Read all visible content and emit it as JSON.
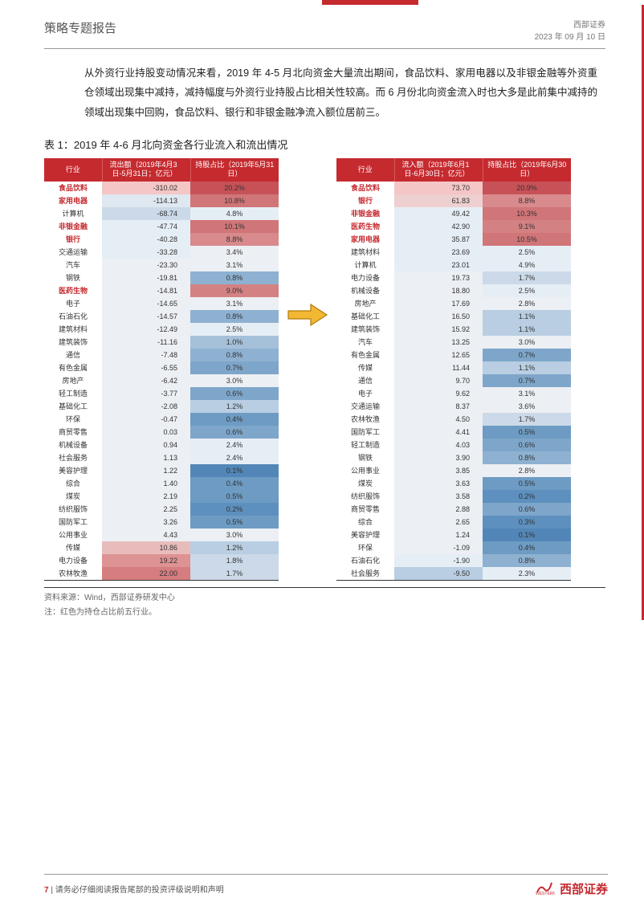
{
  "header": {
    "report_type": "策略专题报告",
    "firm": "西部证券",
    "date": "2023 年 09 月 10 日"
  },
  "intro": "从外资行业持股变动情况来看，2019 年 4-5 月北向资金大量流出期间，食品饮料、家用电器以及非银金融等外资重仓领域出现集中减持，减持幅度与外资行业持股占比相关性较高。而 6 月份北向资金流入时也大多是此前集中减持的领域出现集中回购，食品饮料、银行和非银金融净流入额位居前三。",
  "table_caption": "表 1：2019 年 4-6 月北向资金各行业流入和流出情况",
  "left_table": {
    "headers": [
      "行业",
      "流出额（2019年4月3日-5月31日；亿元）",
      "持股占比（2019年5月31日）"
    ],
    "rows": [
      {
        "ind": "食品饮料",
        "v": "-310.02",
        "p": "20.2%",
        "hl": true,
        "vc": "#f4c6c6",
        "pc": "#c65258"
      },
      {
        "ind": "家用电器",
        "v": "-114.13",
        "p": "10.8%",
        "hl": true,
        "vc": "#dfe7f0",
        "pc": "#d07578"
      },
      {
        "ind": "计算机",
        "v": "-68.74",
        "p": "4.8%",
        "hl": false,
        "vc": "#cbd9e8",
        "pc": "#e6eef5"
      },
      {
        "ind": "非银金融",
        "v": "-47.74",
        "p": "10.1%",
        "hl": true,
        "vc": "#e6eef5",
        "pc": "#d07578"
      },
      {
        "ind": "银行",
        "v": "-40.28",
        "p": "8.8%",
        "hl": true,
        "vc": "#e6eef5",
        "pc": "#d88a8c"
      },
      {
        "ind": "交通运输",
        "v": "-33.28",
        "p": "3.4%",
        "hl": false,
        "vc": "#e6eef5",
        "pc": "#eceff3"
      },
      {
        "ind": "汽车",
        "v": "-23.30",
        "p": "3.1%",
        "hl": false,
        "vc": "#eceff3",
        "pc": "#eceff3"
      },
      {
        "ind": "钢铁",
        "v": "-19.81",
        "p": "0.8%",
        "hl": false,
        "vc": "#eceff3",
        "pc": "#8eb1d1"
      },
      {
        "ind": "医药生物",
        "v": "-14.81",
        "p": "9.0%",
        "hl": true,
        "vc": "#eceff3",
        "pc": "#d48184"
      },
      {
        "ind": "电子",
        "v": "-14.65",
        "p": "3.1%",
        "hl": false,
        "vc": "#eceff3",
        "pc": "#eceff3"
      },
      {
        "ind": "石油石化",
        "v": "-14.57",
        "p": "0.8%",
        "hl": false,
        "vc": "#eceff3",
        "pc": "#8eb1d1"
      },
      {
        "ind": "建筑材料",
        "v": "-12.49",
        "p": "2.5%",
        "hl": false,
        "vc": "#eceff3",
        "pc": "#e6eef5"
      },
      {
        "ind": "建筑装饰",
        "v": "-11.16",
        "p": "1.0%",
        "hl": false,
        "vc": "#eceff3",
        "pc": "#a5c0d9"
      },
      {
        "ind": "通信",
        "v": "-7.48",
        "p": "0.8%",
        "hl": false,
        "vc": "#eceff3",
        "pc": "#8eb1d1"
      },
      {
        "ind": "有色金属",
        "v": "-6.55",
        "p": "0.7%",
        "hl": false,
        "vc": "#eceff3",
        "pc": "#7ea6ca"
      },
      {
        "ind": "房地产",
        "v": "-6.42",
        "p": "3.0%",
        "hl": false,
        "vc": "#eceff3",
        "pc": "#eceff3"
      },
      {
        "ind": "轻工制造",
        "v": "-3.77",
        "p": "0.6%",
        "hl": false,
        "vc": "#eceff3",
        "pc": "#7ea6ca"
      },
      {
        "ind": "基础化工",
        "v": "-2.08",
        "p": "1.2%",
        "hl": false,
        "vc": "#eceff3",
        "pc": "#b9cee2"
      },
      {
        "ind": "环保",
        "v": "-0.47",
        "p": "0.4%",
        "hl": false,
        "vc": "#eceff3",
        "pc": "#6d9bc3"
      },
      {
        "ind": "商贸零售",
        "v": "0.03",
        "p": "0.6%",
        "hl": false,
        "vc": "#eceff3",
        "pc": "#7ea6ca"
      },
      {
        "ind": "机械设备",
        "v": "0.94",
        "p": "2.4%",
        "hl": false,
        "vc": "#eceff3",
        "pc": "#e6eef5"
      },
      {
        "ind": "社会服务",
        "v": "1.13",
        "p": "2.4%",
        "hl": false,
        "vc": "#eceff3",
        "pc": "#e6eef5"
      },
      {
        "ind": "美容护理",
        "v": "1.22",
        "p": "0.1%",
        "hl": false,
        "vc": "#eceff3",
        "pc": "#5286b8"
      },
      {
        "ind": "综合",
        "v": "1.40",
        "p": "0.4%",
        "hl": false,
        "vc": "#eceff3",
        "pc": "#6d9bc3"
      },
      {
        "ind": "煤炭",
        "v": "2.19",
        "p": "0.5%",
        "hl": false,
        "vc": "#eceff3",
        "pc": "#6d9bc3"
      },
      {
        "ind": "纺织服饰",
        "v": "2.25",
        "p": "0.2%",
        "hl": false,
        "vc": "#eceff3",
        "pc": "#5d90be"
      },
      {
        "ind": "国防军工",
        "v": "3.26",
        "p": "0.5%",
        "hl": false,
        "vc": "#eceff3",
        "pc": "#6d9bc3"
      },
      {
        "ind": "公用事业",
        "v": "4.43",
        "p": "3.0%",
        "hl": false,
        "vc": "#eceff3",
        "pc": "#eceff3"
      },
      {
        "ind": "传媒",
        "v": "10.86",
        "p": "1.2%",
        "hl": false,
        "vc": "#e9bcbc",
        "pc": "#b9cee2"
      },
      {
        "ind": "电力设备",
        "v": "19.22",
        "p": "1.8%",
        "hl": false,
        "vc": "#dd9293",
        "pc": "#cbd9e8"
      },
      {
        "ind": "农林牧渔",
        "v": "22.00",
        "p": "1.7%",
        "hl": false,
        "vc": "#d57d7f",
        "pc": "#cbd9e8"
      }
    ]
  },
  "right_table": {
    "headers": [
      "行业",
      "流入额（2019年6月1日-6月30日；亿元）",
      "持股占比（2019年6月30日）"
    ],
    "rows": [
      {
        "ind": "食品饮料",
        "v": "73.70",
        "p": "20.9%",
        "hl": true,
        "vc": "#f4c6c6",
        "pc": "#c65258"
      },
      {
        "ind": "银行",
        "v": "61.83",
        "p": "8.8%",
        "hl": true,
        "vc": "#eed0d0",
        "pc": "#d88a8c"
      },
      {
        "ind": "非银金融",
        "v": "49.42",
        "p": "10.3%",
        "hl": true,
        "vc": "#e6eef5",
        "pc": "#d07578"
      },
      {
        "ind": "医药生物",
        "v": "42.90",
        "p": "9.1%",
        "hl": true,
        "vc": "#e6eef5",
        "pc": "#d48184"
      },
      {
        "ind": "家用电器",
        "v": "35.87",
        "p": "10.5%",
        "hl": true,
        "vc": "#e6eef5",
        "pc": "#d07578"
      },
      {
        "ind": "建筑材料",
        "v": "23.69",
        "p": "2.5%",
        "hl": false,
        "vc": "#e6eef5",
        "pc": "#e6eef5"
      },
      {
        "ind": "计算机",
        "v": "23.01",
        "p": "4.9%",
        "hl": false,
        "vc": "#e6eef5",
        "pc": "#e6eef5"
      },
      {
        "ind": "电力设备",
        "v": "19.73",
        "p": "1.7%",
        "hl": false,
        "vc": "#eceff3",
        "pc": "#cbd9e8"
      },
      {
        "ind": "机械设备",
        "v": "18.80",
        "p": "2.5%",
        "hl": false,
        "vc": "#eceff3",
        "pc": "#e6eef5"
      },
      {
        "ind": "房地产",
        "v": "17.69",
        "p": "2.8%",
        "hl": false,
        "vc": "#eceff3",
        "pc": "#eceff3"
      },
      {
        "ind": "基础化工",
        "v": "16.50",
        "p": "1.1%",
        "hl": false,
        "vc": "#eceff3",
        "pc": "#b9cee2"
      },
      {
        "ind": "建筑装饰",
        "v": "15.92",
        "p": "1.1%",
        "hl": false,
        "vc": "#eceff3",
        "pc": "#b9cee2"
      },
      {
        "ind": "汽车",
        "v": "13.25",
        "p": "3.0%",
        "hl": false,
        "vc": "#eceff3",
        "pc": "#eceff3"
      },
      {
        "ind": "有色金属",
        "v": "12.65",
        "p": "0.7%",
        "hl": false,
        "vc": "#eceff3",
        "pc": "#7ea6ca"
      },
      {
        "ind": "传媒",
        "v": "11.44",
        "p": "1.1%",
        "hl": false,
        "vc": "#eceff3",
        "pc": "#b9cee2"
      },
      {
        "ind": "通信",
        "v": "9.70",
        "p": "0.7%",
        "hl": false,
        "vc": "#eceff3",
        "pc": "#7ea6ca"
      },
      {
        "ind": "电子",
        "v": "9.62",
        "p": "3.1%",
        "hl": false,
        "vc": "#eceff3",
        "pc": "#eceff3"
      },
      {
        "ind": "交通运输",
        "v": "8.37",
        "p": "3.6%",
        "hl": false,
        "vc": "#eceff3",
        "pc": "#eceff3"
      },
      {
        "ind": "农林牧渔",
        "v": "4.50",
        "p": "1.7%",
        "hl": false,
        "vc": "#eceff3",
        "pc": "#cbd9e8"
      },
      {
        "ind": "国防军工",
        "v": "4.41",
        "p": "0.5%",
        "hl": false,
        "vc": "#eceff3",
        "pc": "#6d9bc3"
      },
      {
        "ind": "轻工制造",
        "v": "4.03",
        "p": "0.6%",
        "hl": false,
        "vc": "#eceff3",
        "pc": "#7ea6ca"
      },
      {
        "ind": "钢铁",
        "v": "3.90",
        "p": "0.8%",
        "hl": false,
        "vc": "#eceff3",
        "pc": "#8eb1d1"
      },
      {
        "ind": "公用事业",
        "v": "3.85",
        "p": "2.8%",
        "hl": false,
        "vc": "#eceff3",
        "pc": "#eceff3"
      },
      {
        "ind": "煤炭",
        "v": "3.63",
        "p": "0.5%",
        "hl": false,
        "vc": "#eceff3",
        "pc": "#6d9bc3"
      },
      {
        "ind": "纺织服饰",
        "v": "3.58",
        "p": "0.2%",
        "hl": false,
        "vc": "#eceff3",
        "pc": "#5d90be"
      },
      {
        "ind": "商贸零售",
        "v": "2.88",
        "p": "0.6%",
        "hl": false,
        "vc": "#eceff3",
        "pc": "#7ea6ca"
      },
      {
        "ind": "综合",
        "v": "2.65",
        "p": "0.3%",
        "hl": false,
        "vc": "#eceff3",
        "pc": "#5d90be"
      },
      {
        "ind": "美容护理",
        "v": "1.24",
        "p": "0.1%",
        "hl": false,
        "vc": "#eceff3",
        "pc": "#5286b8"
      },
      {
        "ind": "环保",
        "v": "-1.09",
        "p": "0.4%",
        "hl": false,
        "vc": "#eceff3",
        "pc": "#6d9bc3"
      },
      {
        "ind": "石油石化",
        "v": "-1.90",
        "p": "0.8%",
        "hl": false,
        "vc": "#e6eef5",
        "pc": "#8eb1d1"
      },
      {
        "ind": "社会服务",
        "v": "-9.50",
        "p": "2.3%",
        "hl": false,
        "vc": "#b9cee2",
        "pc": "#e6eef5"
      }
    ]
  },
  "source_line1": "资料来源：Wind，西部证券研发中心",
  "source_line2": "注：红色为持仓占比前五行业。",
  "footer": {
    "page_num": "7",
    "disclaimer": " | 请务必仔细阅读报告尾部的投资评级说明和声明",
    "logo_small": "WESTERN",
    "logo_cn": "西部证券"
  },
  "arrow_color": "#f2b733",
  "arrow_stroke": "#b07d0e"
}
